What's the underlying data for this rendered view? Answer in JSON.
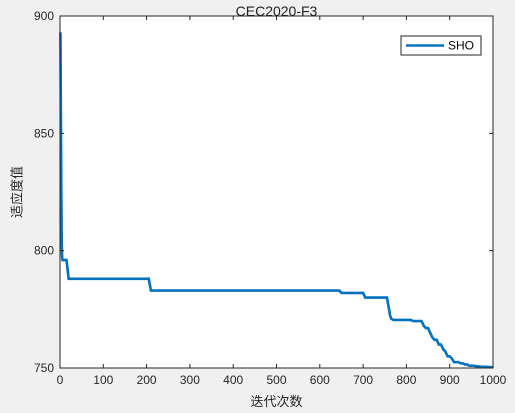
{
  "chart_data": {
    "type": "line",
    "title": "CEC2020-F3",
    "xlabel": "迭代次数",
    "ylabel": "适应度值",
    "xlim": [
      0,
      1000
    ],
    "ylim": [
      750,
      900
    ],
    "x_ticks": [
      0,
      100,
      200,
      300,
      400,
      500,
      600,
      700,
      800,
      900,
      1000
    ],
    "y_ticks": [
      750,
      800,
      850,
      900
    ],
    "grid": false,
    "legend_position": "top-right",
    "series": [
      {
        "name": "SHO",
        "color": "#0072bd",
        "x": [
          1,
          2,
          3,
          4,
          5,
          6,
          8,
          10,
          15,
          20,
          25,
          30,
          100,
          150,
          200,
          205,
          210,
          215,
          300,
          400,
          500,
          600,
          645,
          650,
          700,
          705,
          755,
          760,
          762,
          765,
          770,
          790,
          800,
          810,
          815,
          820,
          825,
          830,
          835,
          840,
          845,
          850,
          855,
          860,
          865,
          870,
          875,
          880,
          885,
          890,
          895,
          900,
          905,
          910,
          915,
          920,
          925,
          930,
          935,
          940,
          945,
          950,
          955,
          960,
          965,
          970,
          975,
          980,
          985,
          990,
          995,
          1000
        ],
        "y": [
          893,
          860,
          825,
          803,
          797,
          796,
          796,
          796,
          796,
          788,
          788,
          788,
          788,
          788,
          788,
          788,
          783,
          783,
          783,
          783,
          783,
          783,
          783,
          782,
          782,
          780,
          780,
          775,
          772.5,
          771,
          770.5,
          770.5,
          770.5,
          770.5,
          770,
          770,
          770,
          770,
          770,
          768,
          767,
          767,
          765,
          763,
          762,
          762,
          760,
          760,
          758,
          757,
          755,
          755,
          754,
          752.5,
          752.5,
          752.5,
          752,
          752,
          751.5,
          751.5,
          751,
          751,
          751,
          750.8,
          750.7,
          750.6,
          750.5,
          750.5,
          750.5,
          750.4,
          750.4,
          750.3
        ]
      }
    ]
  }
}
